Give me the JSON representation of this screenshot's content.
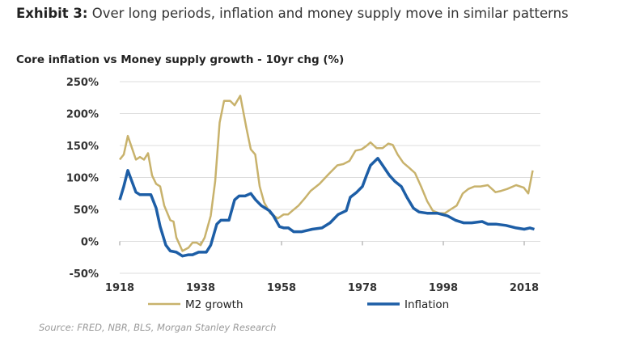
{
  "title": {
    "exhibit": "Exhibit 3:",
    "text": "Over long periods, inflation and money supply move in similar patterns"
  },
  "source": "Source: FRED, NBR, BLS, Morgan Stanley Research",
  "chart_data": {
    "type": "line",
    "title": "Core inflation vs Money supply growth - 10yr chg (%)",
    "xlabel": "",
    "ylabel": "",
    "xlim": [
      1918,
      2021
    ],
    "ylim": [
      -50,
      250
    ],
    "x_ticks": [
      "1918",
      "1938",
      "1958",
      "1978",
      "1998",
      "2018"
    ],
    "y_ticks": [
      "250%",
      "200%",
      "150%",
      "100%",
      "50%",
      "0%",
      "-50%"
    ],
    "grid": "horizontal",
    "legend": "bottom",
    "series": [
      {
        "name": "M2 growth",
        "color": "#c8b26c",
        "x": [
          1918,
          1919,
          1920,
          1922,
          1923,
          1924,
          1925,
          1926,
          1927,
          1928,
          1929,
          1930.5,
          1931.3,
          1932,
          1933.5,
          1935,
          1936,
          1937,
          1938,
          1939,
          1940.5,
          1941.6,
          1942.7,
          1943.8,
          1945.3,
          1946.4,
          1947.8,
          1949.3,
          1950.4,
          1951.5,
          1952.6,
          1953.7,
          1955.2,
          1957.1,
          1958.5,
          1959.6,
          1960.7,
          1962.2,
          1963.7,
          1965.2,
          1967.4,
          1969.6,
          1971.8,
          1973.3,
          1974.8,
          1976.3,
          1977.8,
          1978.9,
          1980,
          1981.5,
          1983,
          1984.4,
          1985.5,
          1986.7,
          1988.1,
          1989.6,
          1991,
          1992.5,
          1994,
          1995.4,
          1996.9,
          1998.4,
          1999.8,
          2001.3,
          2002.8,
          2004.2,
          2005.7,
          2007.2,
          2009,
          2010.9,
          2012.3,
          2013.8,
          2016,
          2017.9,
          2019,
          2020.1
        ],
        "values": [
          128,
          136,
          165,
          128,
          132,
          128,
          138,
          103,
          90,
          86,
          56,
          33,
          31,
          6,
          -15,
          -10,
          -2,
          -2,
          -6,
          6,
          40,
          94,
          186,
          220,
          220,
          213,
          228,
          178,
          144,
          136,
          86,
          61,
          44,
          36,
          42,
          42,
          48,
          56,
          67,
          79,
          90,
          105,
          119,
          121,
          126,
          142,
          144,
          149,
          155,
          146,
          146,
          153,
          151,
          136,
          123,
          115,
          107,
          86,
          63,
          48,
          44,
          44,
          50,
          56,
          75,
          82,
          86,
          86,
          88,
          77,
          79,
          82,
          88,
          84,
          75,
          111
        ]
      },
      {
        "name": "Inflation",
        "color": "#1d5ea6",
        "x": [
          1918,
          1919,
          1920,
          1922,
          1923,
          1924,
          1925.7,
          1927,
          1928,
          1929.4,
          1930.5,
          1932,
          1933.5,
          1935,
          1936,
          1937.5,
          1939.4,
          1940.5,
          1942,
          1943,
          1945,
          1946.4,
          1947.5,
          1949,
          1950.4,
          1951.6,
          1953,
          1955,
          1956,
          1957.5,
          1958.6,
          1959.7,
          1961,
          1963,
          1965.6,
          1968,
          1970,
          1972,
          1974,
          1975,
          1976.6,
          1978,
          1979,
          1980,
          1981.8,
          1983,
          1984.7,
          1986,
          1987.6,
          1989,
          1990.6,
          1992,
          1994,
          1996.5,
          1999,
          2001,
          2003,
          2005,
          2007.6,
          2009,
          2011,
          2013.5,
          2016,
          2018,
          2019.4,
          2020.5
        ],
        "values": [
          65,
          86,
          111,
          77,
          73,
          73,
          73,
          52,
          23,
          -6,
          -15,
          -17,
          -23,
          -21,
          -21,
          -17,
          -17,
          -6,
          27,
          33,
          33,
          65,
          71,
          71,
          75,
          65,
          56,
          48,
          40,
          23,
          21,
          21,
          15,
          15,
          19,
          21,
          29,
          42,
          48,
          69,
          77,
          86,
          103,
          119,
          130,
          119,
          103,
          94,
          86,
          69,
          52,
          46,
          44,
          44,
          40,
          33,
          29,
          29,
          31,
          27,
          27,
          25,
          21,
          19,
          21,
          19
        ]
      }
    ]
  }
}
